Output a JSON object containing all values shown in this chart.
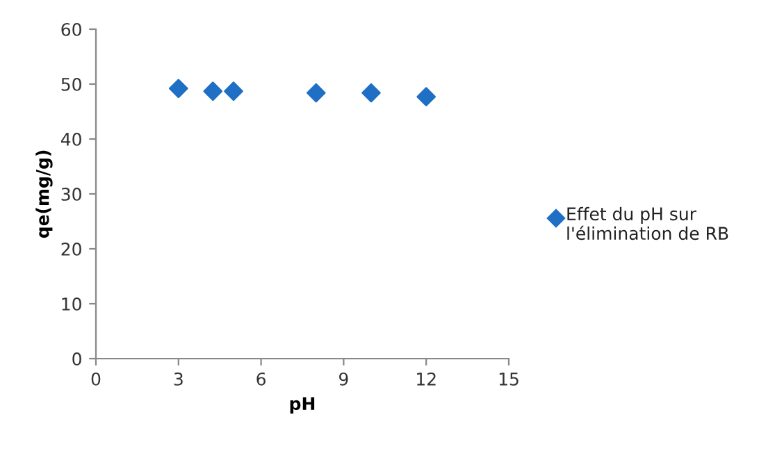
{
  "chart_data": {
    "type": "scatter",
    "xlabel": "pH",
    "ylabel": "qe(mg/g)",
    "x": [
      3,
      4.25,
      5,
      8,
      10,
      12
    ],
    "series": [
      {
        "name": "Effet du pH sur l'élimination de RB",
        "color": "#1f6fc5",
        "values": [
          49.2,
          48.7,
          48.7,
          48.4,
          48.4,
          47.7
        ]
      }
    ],
    "xlim": [
      0,
      15
    ],
    "xticks": [
      0,
      3,
      6,
      9,
      12,
      15
    ],
    "ylim": [
      0,
      60
    ],
    "yticks": [
      0,
      10,
      20,
      30,
      40,
      50,
      60
    ],
    "marker": "diamond",
    "grid": false,
    "legend": "right"
  }
}
